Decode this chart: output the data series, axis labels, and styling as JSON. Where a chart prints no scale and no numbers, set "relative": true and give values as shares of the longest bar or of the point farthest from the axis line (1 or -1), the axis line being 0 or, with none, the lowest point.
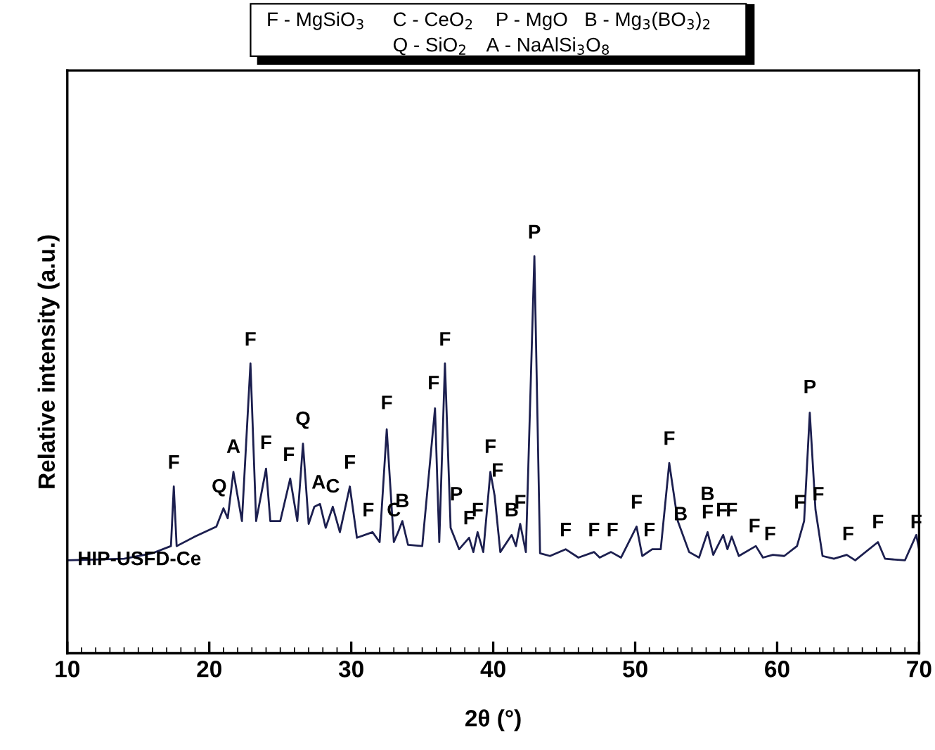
{
  "chart_data": {
    "type": "line",
    "relative": true,
    "xlabel": "2θ (°)",
    "ylabel": "Relative intensity (a.u.)",
    "xlim": [
      10,
      70
    ],
    "xticks": [
      10,
      20,
      30,
      40,
      50,
      60,
      70
    ],
    "tick_labels": "x",
    "grid": false,
    "legend": false,
    "marker": "none",
    "line_style": "solid",
    "annotations": [
      "F - MgSiO$_{3}$",
      "C - CeO$_{2}$",
      "P - MgO",
      "B - Mg$_{3}$(BO$_{3}$)$_{2}$",
      "Q - SiO$_{2}$",
      "A - NaAlSi$_{3}$O$_{8}$",
      "HIP-USFD-Ce",
      {
        "text": "F",
        "x": 17.5,
        "y": 0.43
      },
      {
        "text": "Q",
        "x": 20.7,
        "y": 0.37
      },
      {
        "text": "A",
        "x": 21.7,
        "y": 0.47
      },
      {
        "text": "F",
        "x": 22.9,
        "y": 0.74
      },
      {
        "text": "F",
        "x": 24.0,
        "y": 0.48
      },
      {
        "text": "F",
        "x": 25.6,
        "y": 0.45
      },
      {
        "text": "Q",
        "x": 26.6,
        "y": 0.54
      },
      {
        "text": "A",
        "x": 27.7,
        "y": 0.38
      },
      {
        "text": "C",
        "x": 28.7,
        "y": 0.37
      },
      {
        "text": "F",
        "x": 29.9,
        "y": 0.43
      },
      {
        "text": "F",
        "x": 31.2,
        "y": 0.31
      },
      {
        "text": "F",
        "x": 32.5,
        "y": 0.58
      },
      {
        "text": "C",
        "x": 33.0,
        "y": 0.31
      },
      {
        "text": "B",
        "x": 33.6,
        "y": 0.333
      },
      {
        "text": "F",
        "x": 35.8,
        "y": 0.63
      },
      {
        "text": "F",
        "x": 36.6,
        "y": 0.74
      },
      {
        "text": "P",
        "x": 37.4,
        "y": 0.35
      },
      {
        "text": "F",
        "x": 38.3,
        "y": 0.29
      },
      {
        "text": "F",
        "x": 38.9,
        "y": 0.31
      },
      {
        "text": "F",
        "x": 39.8,
        "y": 0.47
      },
      {
        "text": "F",
        "x": 40.3,
        "y": 0.41
      },
      {
        "text": "B",
        "x": 41.3,
        "y": 0.31
      },
      {
        "text": "F",
        "x": 41.9,
        "y": 0.33
      },
      {
        "text": "P",
        "x": 42.9,
        "y": 1.01
      },
      {
        "text": "F",
        "x": 45.1,
        "y": 0.26
      },
      {
        "text": "F",
        "x": 47.1,
        "y": 0.26
      },
      {
        "text": "F",
        "x": 48.4,
        "y": 0.26
      },
      {
        "text": "F",
        "x": 50.1,
        "y": 0.33
      },
      {
        "text": "F",
        "x": 51.0,
        "y": 0.26
      },
      {
        "text": "F",
        "x": 52.4,
        "y": 0.49
      },
      {
        "text": "B",
        "x": 53.2,
        "y": 0.3
      },
      {
        "text": "B\nF",
        "x": 55.1,
        "y": 0.305
      },
      {
        "text": "F",
        "x": 56.1,
        "y": 0.31
      },
      {
        "text": "F",
        "x": 56.8,
        "y": 0.31
      },
      {
        "text": "F",
        "x": 58.4,
        "y": 0.27
      },
      {
        "text": "F",
        "x": 59.5,
        "y": 0.25
      },
      {
        "text": "F",
        "x": 61.6,
        "y": 0.33
      },
      {
        "text": "P",
        "x": 62.3,
        "y": 0.62
      },
      {
        "text": "F",
        "x": 62.9,
        "y": 0.35
      },
      {
        "text": "F",
        "x": 65.0,
        "y": 0.25
      },
      {
        "text": "F",
        "x": 67.1,
        "y": 0.28
      },
      {
        "text": "F",
        "x": 69.8,
        "y": 0.28
      }
    ],
    "series": [
      {
        "color": "#1c1f4f",
        "x": [
          10,
          14,
          16,
          17.3,
          17.5,
          17.7,
          19,
          20.5,
          21,
          21.3,
          21.7,
          22.3,
          22.9,
          23.3,
          24,
          24.3,
          25,
          25.7,
          26.2,
          26.6,
          27,
          27.4,
          27.8,
          28.2,
          28.7,
          29.2,
          29.9,
          30.4,
          31.5,
          32,
          32.5,
          33,
          33.3,
          33.6,
          34,
          35,
          35.9,
          36.2,
          36.6,
          37,
          37.6,
          38.3,
          38.6,
          38.9,
          39.3,
          39.8,
          40.1,
          40.5,
          41.3,
          41.6,
          41.9,
          42.3,
          42.9,
          43.3,
          44,
          45.1,
          46,
          47.1,
          47.5,
          48.3,
          49,
          50.1,
          50.5,
          51.2,
          51.8,
          52.4,
          53,
          53.8,
          54.5,
          55.1,
          55.5,
          56.2,
          56.5,
          56.8,
          57.3,
          58.5,
          59,
          59.7,
          60.5,
          61.4,
          61.9,
          62.3,
          62.7,
          63.2,
          64,
          64.9,
          65.5,
          67.1,
          67.6,
          69,
          69.8,
          70
        ],
        "values": [
          0.234,
          0.238,
          0.252,
          0.27,
          0.42,
          0.27,
          0.294,
          0.319,
          0.365,
          0.34,
          0.457,
          0.333,
          0.73,
          0.333,
          0.465,
          0.333,
          0.333,
          0.44,
          0.333,
          0.528,
          0.326,
          0.369,
          0.376,
          0.316,
          0.369,
          0.305,
          0.42,
          0.291,
          0.305,
          0.28,
          0.564,
          0.28,
          0.305,
          0.333,
          0.273,
          0.27,
          0.617,
          0.28,
          0.73,
          0.316,
          0.262,
          0.291,
          0.255,
          0.305,
          0.255,
          0.457,
          0.397,
          0.255,
          0.298,
          0.27,
          0.326,
          0.255,
          1,
          0.252,
          0.245,
          0.262,
          0.241,
          0.255,
          0.241,
          0.255,
          0.241,
          0.319,
          0.245,
          0.262,
          0.262,
          0.479,
          0.333,
          0.255,
          0.241,
          0.305,
          0.248,
          0.298,
          0.262,
          0.294,
          0.245,
          0.27,
          0.241,
          0.248,
          0.245,
          0.27,
          0.333,
          0.606,
          0.362,
          0.245,
          0.238,
          0.248,
          0.234,
          0.28,
          0.238,
          0.234,
          0.298,
          0.262
        ]
      }
    ]
  }
}
